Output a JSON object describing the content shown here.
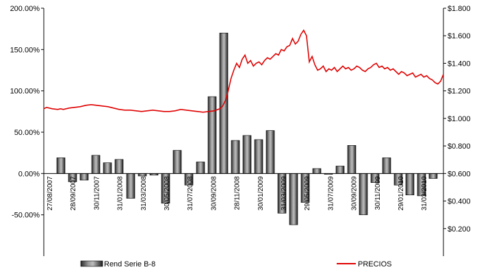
{
  "chart_data": {
    "type": "bar+line",
    "title": "",
    "xlabel": "",
    "ylabel": "",
    "left_axis": {
      "ylim": [
        -100,
        200
      ],
      "ticks": [
        -50,
        0,
        50,
        100,
        150,
        200
      ],
      "tick_labels": [
        "-50.00%",
        "0.00%",
        "50.00%",
        "100.00%",
        "150.00%",
        "200.00%"
      ]
    },
    "right_axis": {
      "ylim": [
        0.0,
        1.8
      ],
      "ticks": [
        0.2,
        0.4,
        0.6,
        0.8,
        1.0,
        1.2,
        1.4,
        1.6,
        1.8
      ],
      "tick_labels": [
        "$0.200",
        "$0.400",
        "$0.600",
        "$0.800",
        "$1.000",
        "$1.200",
        "$1.400",
        "$1.600",
        "$1.800"
      ]
    },
    "x_tick_labels": [
      "27/08/2007",
      "28/09/2007",
      "30/11/2007",
      "31/01/2008",
      "31/03/2008",
      "30/05/2008",
      "31/07/2008",
      "30/09/2008",
      "28/11/2008",
      "30/01/2009",
      "31/03/2009",
      "29/05/2009",
      "31/07/2009",
      "30/09/2009",
      "30/11/2009",
      "29/01/2010",
      "31/03/2010"
    ],
    "series": [
      {
        "name": "Rend Serie B-8",
        "type": "bar",
        "axis": "left",
        "values": [
          19,
          -10,
          -8,
          22,
          13,
          17,
          -30,
          -3,
          -2,
          -36,
          28,
          -14,
          14,
          93,
          170,
          40,
          46,
          41,
          52,
          -48,
          -62,
          -35,
          6,
          -1,
          9,
          34,
          -50,
          -11,
          19,
          -14,
          -26,
          -27,
          -6
        ]
      },
      {
        "name": "PRECIOS",
        "type": "line",
        "axis": "right",
        "color": "#e00000",
        "points": [
          [
            0,
            1.07
          ],
          [
            1,
            1.08
          ],
          [
            3,
            1.07
          ],
          [
            5,
            1.065
          ],
          [
            6,
            1.07
          ],
          [
            7,
            1.065
          ],
          [
            9,
            1.075
          ],
          [
            11,
            1.08
          ],
          [
            13,
            1.085
          ],
          [
            15,
            1.095
          ],
          [
            17,
            1.1
          ],
          [
            19,
            1.095
          ],
          [
            21,
            1.09
          ],
          [
            23,
            1.085
          ],
          [
            25,
            1.075
          ],
          [
            27,
            1.065
          ],
          [
            29,
            1.06
          ],
          [
            31,
            1.06
          ],
          [
            33,
            1.055
          ],
          [
            35,
            1.05
          ],
          [
            37,
            1.055
          ],
          [
            39,
            1.06
          ],
          [
            41,
            1.055
          ],
          [
            43,
            1.05
          ],
          [
            45,
            1.05
          ],
          [
            47,
            1.055
          ],
          [
            49,
            1.065
          ],
          [
            51,
            1.06
          ],
          [
            53,
            1.055
          ],
          [
            55,
            1.05
          ],
          [
            57,
            1.045
          ],
          [
            59,
            1.05
          ],
          [
            61,
            1.055
          ],
          [
            63,
            1.07
          ],
          [
            64,
            1.09
          ],
          [
            65,
            1.13
          ],
          [
            66,
            1.2
          ],
          [
            67,
            1.29
          ],
          [
            68,
            1.35
          ],
          [
            69,
            1.4
          ],
          [
            70,
            1.37
          ],
          [
            71,
            1.43
          ],
          [
            72,
            1.46
          ],
          [
            73,
            1.4
          ],
          [
            74,
            1.42
          ],
          [
            75,
            1.38
          ],
          [
            76,
            1.4
          ],
          [
            77,
            1.41
          ],
          [
            78,
            1.39
          ],
          [
            79,
            1.42
          ],
          [
            80,
            1.44
          ],
          [
            81,
            1.43
          ],
          [
            82,
            1.45
          ],
          [
            83,
            1.47
          ],
          [
            84,
            1.46
          ],
          [
            85,
            1.5
          ],
          [
            86,
            1.49
          ],
          [
            87,
            1.52
          ],
          [
            88,
            1.53
          ],
          [
            89,
            1.58
          ],
          [
            90,
            1.54
          ],
          [
            91,
            1.56
          ],
          [
            92,
            1.61
          ],
          [
            93,
            1.64
          ],
          [
            94,
            1.6
          ],
          [
            95,
            1.41
          ],
          [
            96,
            1.45
          ],
          [
            97,
            1.39
          ],
          [
            98,
            1.35
          ],
          [
            99,
            1.36
          ],
          [
            100,
            1.38
          ],
          [
            101,
            1.34
          ],
          [
            102,
            1.36
          ],
          [
            103,
            1.35
          ],
          [
            104,
            1.37
          ],
          [
            105,
            1.34
          ],
          [
            106,
            1.36
          ],
          [
            107,
            1.38
          ],
          [
            108,
            1.36
          ],
          [
            109,
            1.37
          ],
          [
            110,
            1.35
          ],
          [
            111,
            1.36
          ],
          [
            112,
            1.38
          ],
          [
            113,
            1.37
          ],
          [
            114,
            1.35
          ],
          [
            115,
            1.34
          ],
          [
            116,
            1.36
          ],
          [
            117,
            1.37
          ],
          [
            118,
            1.39
          ],
          [
            119,
            1.4
          ],
          [
            120,
            1.37
          ],
          [
            121,
            1.38
          ],
          [
            122,
            1.36
          ],
          [
            123,
            1.37
          ],
          [
            124,
            1.35
          ],
          [
            125,
            1.36
          ],
          [
            126,
            1.34
          ],
          [
            127,
            1.32
          ],
          [
            128,
            1.34
          ],
          [
            129,
            1.33
          ],
          [
            130,
            1.31
          ],
          [
            131,
            1.32
          ],
          [
            132,
            1.33
          ],
          [
            133,
            1.3
          ],
          [
            134,
            1.31
          ],
          [
            135,
            1.32
          ],
          [
            136,
            1.3
          ],
          [
            137,
            1.31
          ],
          [
            138,
            1.29
          ],
          [
            139,
            1.28
          ],
          [
            140,
            1.26
          ],
          [
            141,
            1.25
          ],
          [
            142,
            1.27
          ],
          [
            143,
            1.32
          ]
        ]
      }
    ],
    "legend": {
      "placement": "bottom",
      "items": [
        {
          "label": "Rend Serie B-8",
          "marker": "bar"
        },
        {
          "label": "PRECIOS",
          "marker": "line",
          "color": "#e00000"
        }
      ]
    },
    "grid": false
  }
}
